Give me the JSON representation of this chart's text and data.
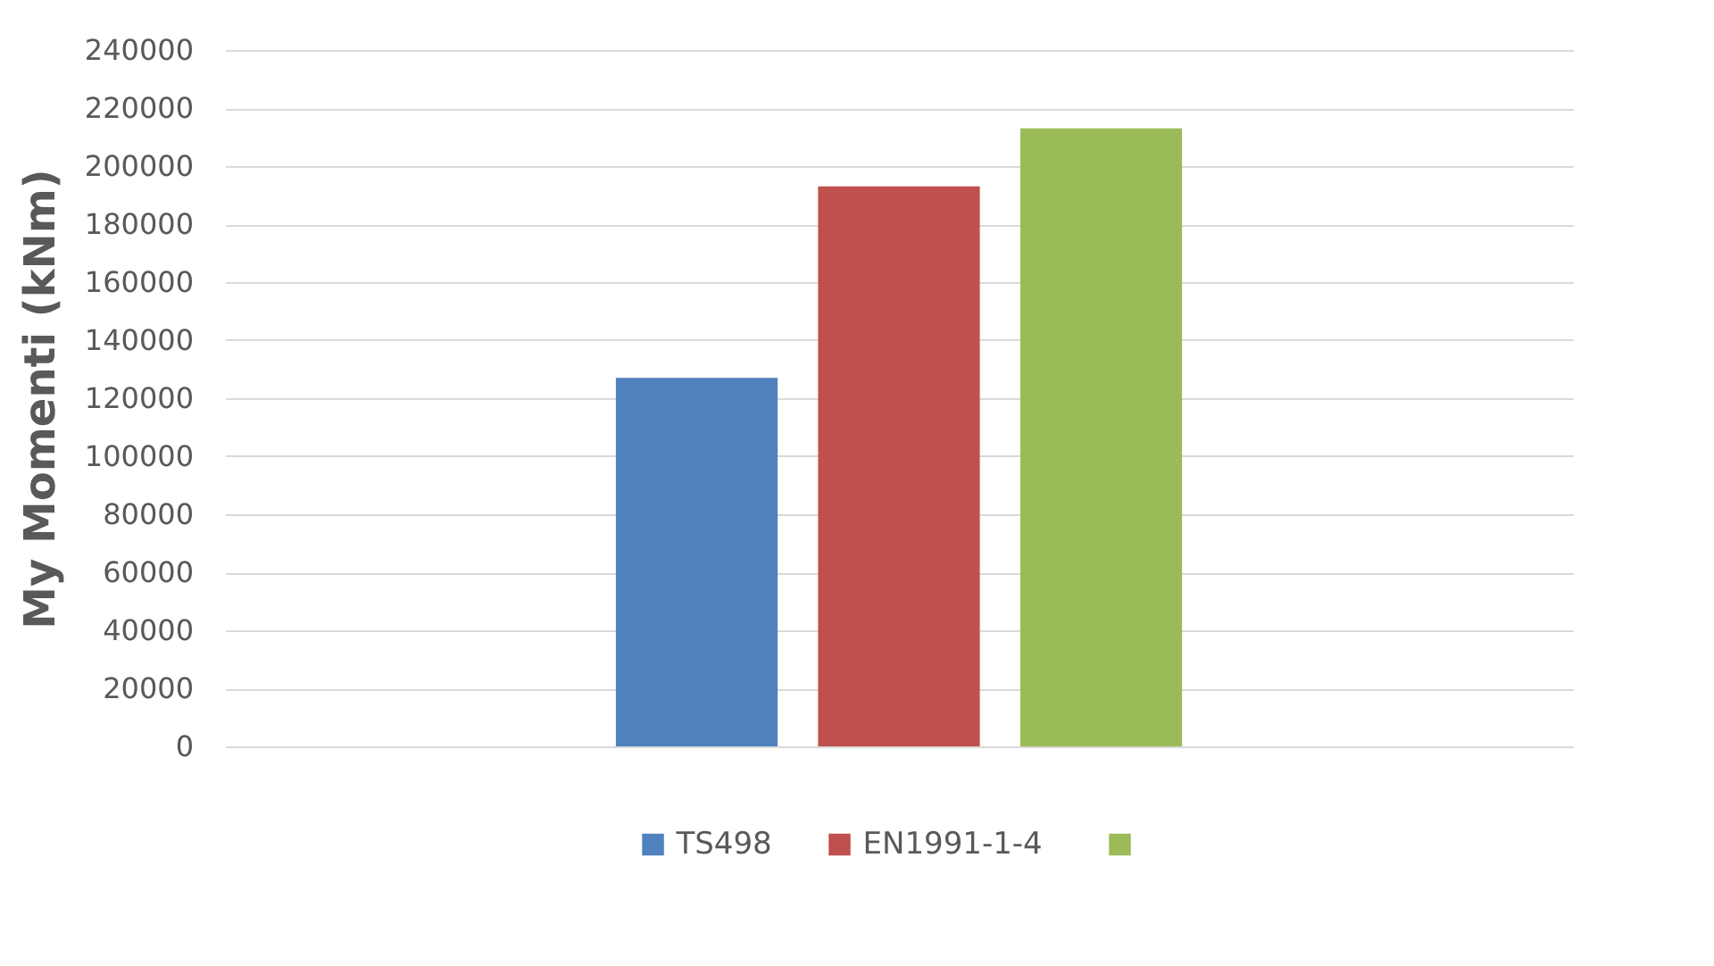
{
  "chart_data": {
    "type": "bar",
    "ylabel": "My Momenti (kNm)",
    "categories": [
      null
    ],
    "series": [
      {
        "name": "TS498",
        "color": "#4f81bd",
        "values": [
          127000
        ]
      },
      {
        "name": "EN1991-1-4",
        "color": "#c0504d",
        "values": [
          193000
        ]
      },
      {
        "color": "#9bbb59",
        "values": [
          213000
        ]
      }
    ],
    "ylim": [
      0,
      240000
    ],
    "yticks": [
      0,
      20000,
      40000,
      60000,
      80000,
      100000,
      120000,
      140000,
      160000,
      180000,
      200000,
      220000,
      240000
    ],
    "grid": "y",
    "legend": "bottom"
  }
}
